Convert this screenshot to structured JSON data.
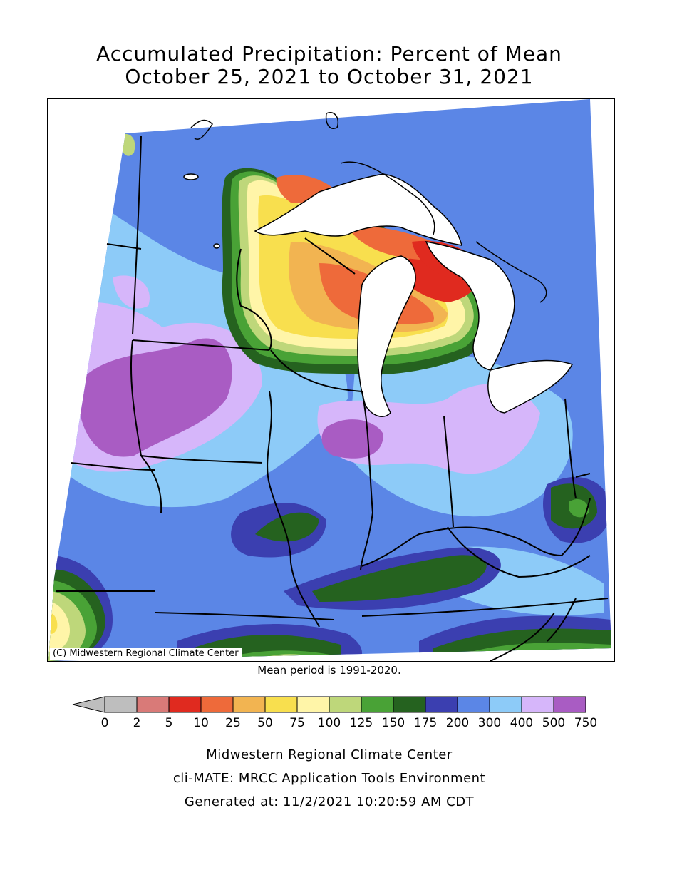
{
  "title": {
    "line1": "Accumulated Precipitation: Percent of Mean",
    "line2": "October 25, 2021 to October 31, 2021"
  },
  "map": {
    "credit": "(C) Midwestern Regional Climate Center",
    "mean_note": "Mean period is 1991-2020."
  },
  "legend": {
    "ticks": [
      "0",
      "2",
      "5",
      "10",
      "25",
      "50",
      "75",
      "100",
      "125",
      "150",
      "175",
      "200",
      "300",
      "400",
      "500",
      "750"
    ],
    "colors": [
      "#bebebe",
      "#d97a78",
      "#e02a1f",
      "#ee6a3a",
      "#f2b451",
      "#f8df4e",
      "#fff5a8",
      "#bed77a",
      "#49a236",
      "#25621f",
      "#3b3fb0",
      "#5b86e6",
      "#8dcbf8",
      "#d6b6fa",
      "#a95cc3"
    ]
  },
  "footer": {
    "line1": "Midwestern Regional Climate Center",
    "line2": "cli-MATE: MRCC Application Tools Environment",
    "line3": "Generated at: 11/2/2021 10:20:59 AM CDT"
  }
}
